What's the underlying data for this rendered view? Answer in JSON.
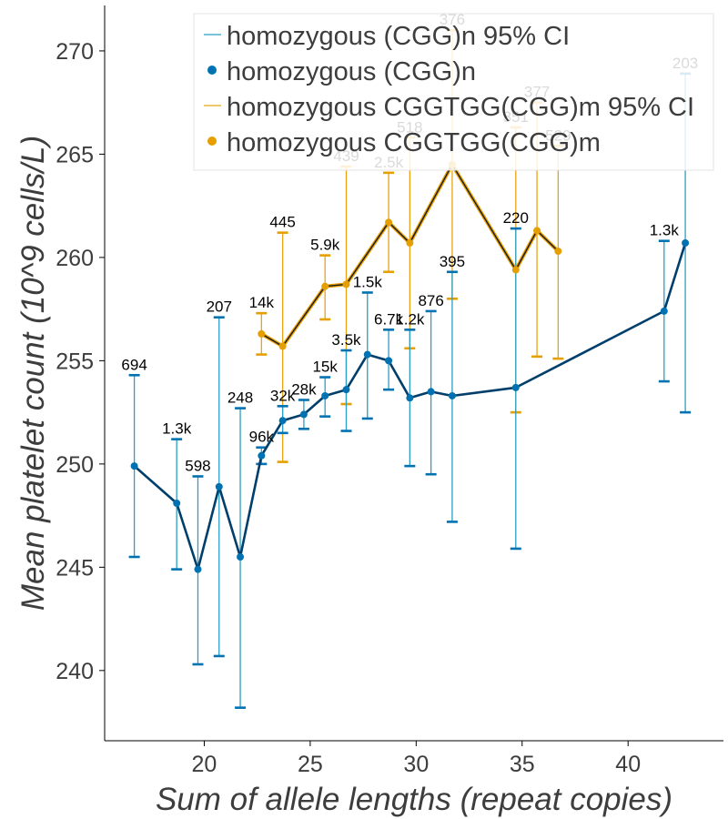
{
  "chart_data": {
    "type": "line",
    "xlabel": "Sum of allele lengths (repeat copies)",
    "ylabel": "Mean platelet count (10^9 cells/L)",
    "xlim": [
      15.3,
      44.5
    ],
    "ylim": [
      236.6,
      272.2
    ],
    "xticks": [
      20,
      25,
      30,
      35,
      40
    ],
    "yticks": [
      240,
      245,
      250,
      255,
      260,
      265,
      270
    ],
    "grid": false,
    "legend_position": "top-right",
    "legend": [
      {
        "label": "homozygous (CGG)n 95% CI",
        "kind": "line",
        "color": "#2a9ec4"
      },
      {
        "label": "homozygous (CGG)n",
        "kind": "marker",
        "color": "#0072b2"
      },
      {
        "label": "homozygous CGGTGG(CGG)m 95% CI",
        "kind": "line",
        "color": "#e8a317"
      },
      {
        "label": "homozygous CGGTGG(CGG)m",
        "kind": "marker",
        "color": "#e69f00"
      }
    ],
    "series": [
      {
        "name": "homozygous (CGG)n",
        "color": "#0072b2",
        "ci_color": "#2a9ec4",
        "line_color": "#003f6b",
        "points": [
          {
            "x": 16.7,
            "y": 249.9,
            "lo": 245.5,
            "hi": 254.3,
            "n": "694"
          },
          {
            "x": 18.7,
            "y": 248.1,
            "lo": 244.9,
            "hi": 251.2,
            "n": "1.3k"
          },
          {
            "x": 19.7,
            "y": 244.9,
            "lo": 240.3,
            "hi": 249.4,
            "n": "598"
          },
          {
            "x": 20.7,
            "y": 248.9,
            "lo": 240.7,
            "hi": 257.1,
            "n": "207"
          },
          {
            "x": 21.7,
            "y": 245.5,
            "lo": 238.2,
            "hi": 252.7,
            "n": "248"
          },
          {
            "x": 22.7,
            "y": 250.4,
            "lo": 250.0,
            "hi": 250.8,
            "n": "96k"
          },
          {
            "x": 23.7,
            "y": 252.1,
            "lo": 251.5,
            "hi": 252.8,
            "n": "32k"
          },
          {
            "x": 24.7,
            "y": 252.4,
            "lo": 251.7,
            "hi": 253.1,
            "n": "28k"
          },
          {
            "x": 25.7,
            "y": 253.3,
            "lo": 252.3,
            "hi": 254.2,
            "n": "15k"
          },
          {
            "x": 26.7,
            "y": 253.6,
            "lo": 251.6,
            "hi": 255.5,
            "n": "3.5k"
          },
          {
            "x": 27.7,
            "y": 255.3,
            "lo": 252.2,
            "hi": 258.3,
            "n": "1.5k"
          },
          {
            "x": 28.7,
            "y": 255.0,
            "lo": 253.6,
            "hi": 256.5,
            "n": "6.7k"
          },
          {
            "x": 29.7,
            "y": 253.2,
            "lo": 249.9,
            "hi": 256.5,
            "n": "1.2k"
          },
          {
            "x": 30.7,
            "y": 253.5,
            "lo": 249.5,
            "hi": 257.4,
            "n": "876"
          },
          {
            "x": 31.7,
            "y": 253.3,
            "lo": 247.2,
            "hi": 259.3,
            "n": "395"
          },
          {
            "x": 34.7,
            "y": 253.7,
            "lo": 245.9,
            "hi": 261.4,
            "n": "220"
          },
          {
            "x": 41.7,
            "y": 257.4,
            "lo": 254.0,
            "hi": 260.8,
            "n": "1.3k"
          },
          {
            "x": 42.7,
            "y": 260.7,
            "lo": 252.5,
            "hi": 268.9,
            "n": "203"
          }
        ]
      },
      {
        "name": "homozygous CGGTGG(CGG)m",
        "color": "#e69f00",
        "ci_color": "#e8a317",
        "line_color": "#1a1a1a",
        "points": [
          {
            "x": 22.7,
            "y": 256.3,
            "lo": 255.3,
            "hi": 257.3,
            "n": "14k"
          },
          {
            "x": 23.7,
            "y": 255.7,
            "lo": 250.1,
            "hi": 261.2,
            "n": "445"
          },
          {
            "x": 25.7,
            "y": 258.6,
            "lo": 257.0,
            "hi": 260.1,
            "n": "5.9k"
          },
          {
            "x": 26.7,
            "y": 258.7,
            "lo": 252.9,
            "hi": 264.4,
            "n": "439"
          },
          {
            "x": 28.7,
            "y": 261.7,
            "lo": 259.3,
            "hi": 264.1,
            "n": "2.5k"
          },
          {
            "x": 29.7,
            "y": 260.7,
            "lo": 255.6,
            "hi": 265.8,
            "n": "518"
          },
          {
            "x": 31.7,
            "y": 264.5,
            "lo": 258.0,
            "hi": 271.0,
            "n": "376"
          },
          {
            "x": 34.7,
            "y": 259.4,
            "lo": 252.5,
            "hi": 266.3,
            "n": "351"
          },
          {
            "x": 35.7,
            "y": 261.3,
            "lo": 255.2,
            "hi": 267.5,
            "n": "377"
          },
          {
            "x": 36.7,
            "y": 260.3,
            "lo": 255.1,
            "hi": 265.4,
            "n": "529"
          }
        ]
      }
    ]
  }
}
